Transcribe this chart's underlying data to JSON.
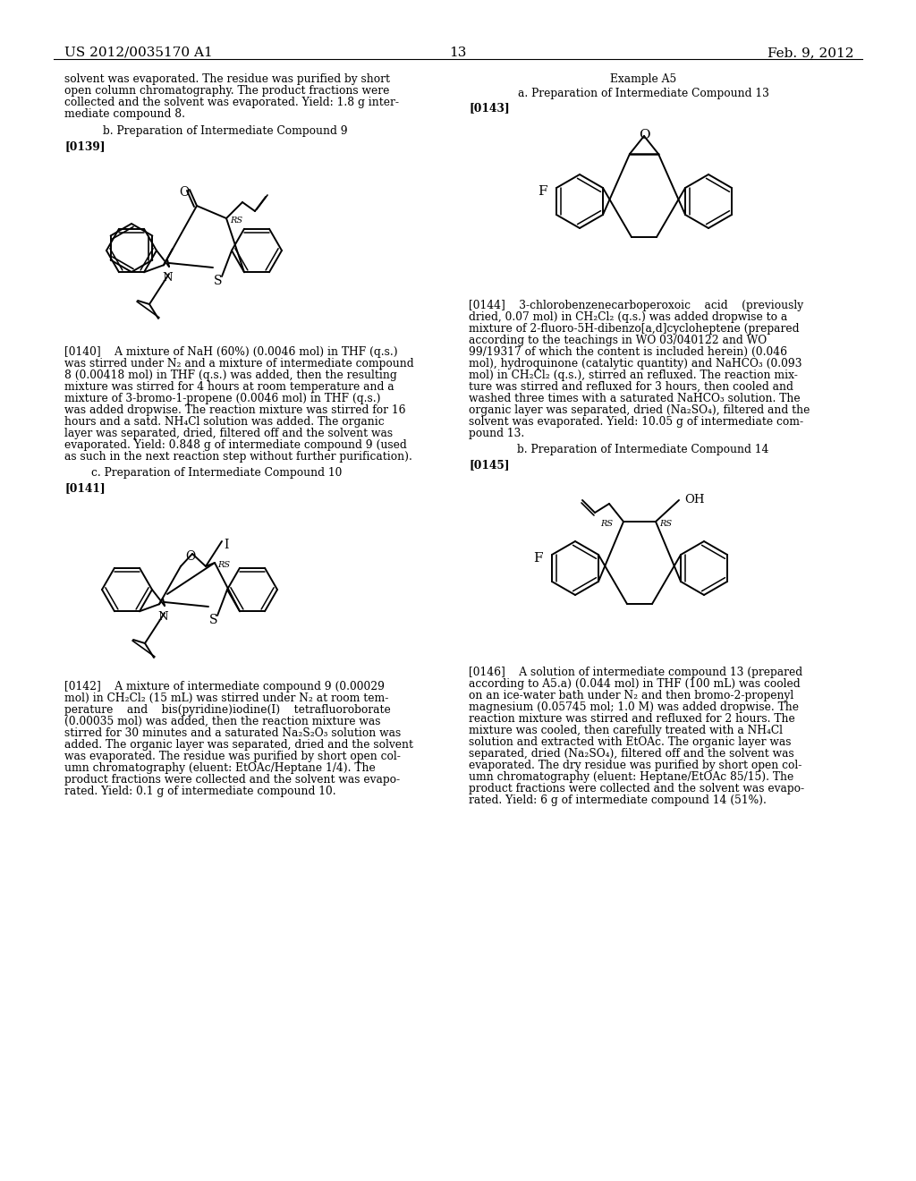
{
  "page_number": "13",
  "header_left": "US 2012/0035170 A1",
  "header_right": "Feb. 9, 2012",
  "background_color": "#ffffff",
  "text_color": "#000000",
  "left_column": {
    "intro_text": "solvent was evaporated. The residue was purified by short\nopen column chromatography. The product fractions were\ncollected and the solvent was evaporated. Yield: 1.8 g inter-\nmediate compound 8.",
    "section_b1": "b. Preparation of Intermediate Compound 9",
    "ref_0139": "[0139]",
    "para_0140": "[0140]    A mixture of NaH (60%) (0.0046 mol) in THF (q.s.)\nwas stirred under N₂ and a mixture of intermediate compound\n8 (0.00418 mol) in THF (q.s.) was added, then the resulting\nmixture was stirred for 4 hours at room temperature and a\nmixture of 3-bromo-1-propene (0.0046 mol) in THF (q.s.)\nwas added dropwise. The reaction mixture was stirred for 16\nhours and a satd. NH₄Cl solution was added. The organic\nlayer was separated, dried, filtered off and the solvent was\nevaporated. Yield: 0.848 g of intermediate compound 9 (used\nas such in the next reaction step without further purification).",
    "section_c1": "c. Preparation of Intermediate Compound 10",
    "ref_0141": "[0141]",
    "para_0142": "[0142]    A mixture of intermediate compound 9 (0.00029\nmol) in CH₂Cl₂ (15 mL) was stirred under N₂ at room tem-\nperature    and    bis(pyridine)iodine(I)    tetrafluoroborate\n(0.00035 mol) was added, then the reaction mixture was\nstirred for 30 minutes and a saturated Na₂S₂O₃ solution was\nadded. The organic layer was separated, dried and the solvent\nwas evaporated. The residue was purified by short open col-\numn chromatography (eluent: EtOAc/Heptane 1/4). The\nproduct fractions were collected and the solvent was evapo-\nrated. Yield: 0.1 g of intermediate compound 10."
  },
  "right_column": {
    "section_a5": "Example A5",
    "section_a1": "a. Preparation of Intermediate Compound 13",
    "ref_0143": "[0143]",
    "para_0144": "[0144]    3-chlorobenzenecarboperoxoic    acid    (previously\ndried, 0.07 mol) in CH₂Cl₂ (q.s.) was added dropwise to a\nmixture of 2-fluoro-5H-dibenzo[a,d]cycloheptene (prepared\naccording to the teachings in WO 03/040122 and WO\n99/19317 of which the content is included herein) (0.046\nmol), hydroquinone (catalytic quantity) and NaHCO₃ (0.093\nmol) in CH₂Cl₂ (q.s.), stirred an refluxed. The reaction mix-\nture was stirred and refluxed for 3 hours, then cooled and\nwashed three times with a saturated NaHCO₃ solution. The\norganic layer was separated, dried (Na₂SO₄), filtered and the\nsolvent was evaporated. Yield: 10.05 g of intermediate com-\npound 13.",
    "section_b2": "b. Preparation of Intermediate Compound 14",
    "ref_0145": "[0145]",
    "para_0146": "[0146]    A solution of intermediate compound 13 (prepared\naccording to A5.a) (0.044 mol) in THF (100 mL) was cooled\non an ice-water bath under N₂ and then bromo-2-propenyl\nmagnesium (0.05745 mol; 1.0 M) was added dropwise. The\nreaction mixture was stirred and refluxed for 2 hours. The\nmixture was cooled, then carefully treated with a NH₄Cl\nsolution and extracted with EtOAc. The organic layer was\nseparated, dried (Na₂SO₄), filtered off and the solvent was\nevaporated. The dry residue was purified by short open col-\numn chromatography (eluent: Heptane/EtOAc 85/15). The\nproduct fractions were collected and the solvent was evapo-\nrated. Yield: 6 g of intermediate compound 14 (51%)."
  }
}
